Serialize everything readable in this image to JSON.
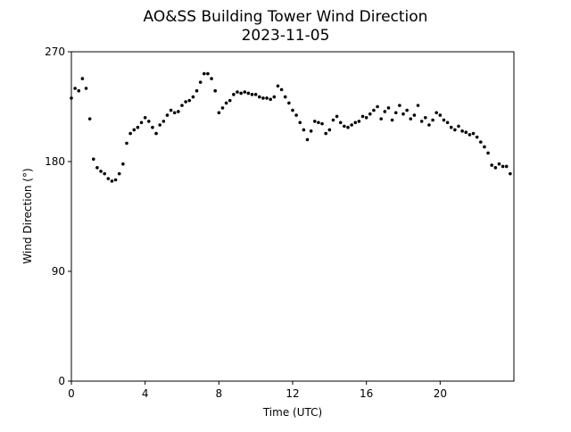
{
  "chart_data": {
    "type": "scatter",
    "title": "AO&SS Building Tower Wind Direction",
    "subtitle": "2023-11-05",
    "x_label": "Time (UTC)",
    "y_label": "Wind Direction (°)",
    "color": "#000000",
    "xlim": [
      0,
      24
    ],
    "xticks": [
      0,
      4,
      8,
      12,
      16,
      20
    ],
    "ylim": [
      0,
      270
    ],
    "yticks": [
      0,
      90,
      180,
      270
    ],
    "x": [
      0,
      0.2,
      0.4,
      0.6,
      0.8,
      1.0,
      1.2,
      1.4,
      1.6,
      1.8,
      2.0,
      2.2,
      2.4,
      2.6,
      2.8,
      3.0,
      3.2,
      3.4,
      3.6,
      3.8,
      4.0,
      4.2,
      4.4,
      4.6,
      4.8,
      5.0,
      5.2,
      5.4,
      5.6,
      5.8,
      6.0,
      6.2,
      6.4,
      6.6,
      6.8,
      7.0,
      7.2,
      7.4,
      7.6,
      7.8,
      8.0,
      8.2,
      8.4,
      8.6,
      8.8,
      9.0,
      9.2,
      9.4,
      9.6,
      9.8,
      10.0,
      10.2,
      10.4,
      10.6,
      10.8,
      11.0,
      11.2,
      11.4,
      11.6,
      11.8,
      12.0,
      12.2,
      12.4,
      12.6,
      12.8,
      13.0,
      13.2,
      13.4,
      13.6,
      13.8,
      14.0,
      14.2,
      14.4,
      14.6,
      14.8,
      15.0,
      15.2,
      15.4,
      15.6,
      15.8,
      16.0,
      16.2,
      16.4,
      16.6,
      16.8,
      17.0,
      17.2,
      17.4,
      17.6,
      17.8,
      18.0,
      18.2,
      18.4,
      18.6,
      18.8,
      19.0,
      19.2,
      19.4,
      19.6,
      19.8,
      20.0,
      20.2,
      20.4,
      20.6,
      20.8,
      21.0,
      21.2,
      21.4,
      21.6,
      21.8,
      22.0,
      22.2,
      22.4,
      22.6,
      22.8,
      23.0,
      23.2,
      23.4,
      23.6,
      23.8
    ],
    "values": [
      232,
      240,
      238,
      248,
      240,
      215,
      182,
      175,
      172,
      170,
      166,
      164,
      165,
      170,
      178,
      195,
      203,
      206,
      208,
      212,
      216,
      213,
      208,
      203,
      210,
      213,
      218,
      222,
      220,
      221,
      226,
      229,
      230,
      233,
      238,
      245,
      252,
      252,
      248,
      238,
      220,
      224,
      228,
      230,
      235,
      237,
      236,
      237,
      236,
      235,
      235,
      233,
      232,
      232,
      231,
      233,
      242,
      239,
      233,
      228,
      222,
      218,
      212,
      206,
      198,
      205,
      213,
      212,
      211,
      203,
      206,
      214,
      217,
      212,
      209,
      208,
      210,
      212,
      213,
      217,
      216,
      219,
      222,
      225,
      215,
      221,
      224,
      214,
      220,
      226,
      219,
      222,
      215,
      218,
      226,
      213,
      216,
      210,
      214,
      220,
      218,
      214,
      212,
      208,
      206,
      209,
      205,
      204,
      202,
      203,
      200,
      196,
      192,
      187,
      177,
      175,
      178,
      176,
      176,
      170
    ]
  }
}
